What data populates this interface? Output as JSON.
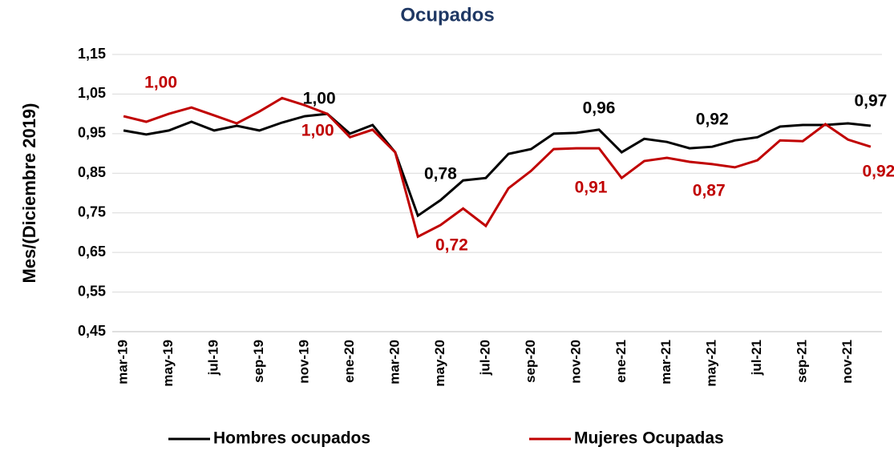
{
  "chart_data": {
    "type": "line",
    "title": "Ocupados",
    "y_label": "Mes/(Diciembre  2019)",
    "categories": [
      "mar-19",
      null,
      "may-19",
      null,
      "jul-19",
      null,
      "sep-19",
      null,
      "nov-19",
      null,
      "ene-20",
      null,
      "mar-20",
      null,
      "may-20",
      null,
      "jul-20",
      null,
      "sep-20",
      null,
      "nov-20",
      null,
      "ene-21",
      null,
      "mar-21",
      null,
      "may-21",
      null,
      "jul-21",
      null,
      "sep-21",
      null,
      "nov-21",
      null
    ],
    "series": [
      {
        "name": "Hombres ocupados",
        "color": "#000000",
        "values": [
          0.958,
          0.948,
          0.958,
          0.98,
          0.958,
          0.97,
          0.958,
          0.978,
          0.994,
          1.0,
          0.95,
          0.972,
          0.903,
          0.743,
          0.782,
          0.832,
          0.838,
          0.899,
          0.911,
          0.95,
          0.952,
          0.96,
          0.903,
          0.937,
          0.929,
          0.913,
          0.917,
          0.933,
          0.941,
          0.968,
          0.972,
          0.972,
          0.976,
          0.97
        ],
        "value_labels": [
          null,
          null,
          null,
          null,
          null,
          null,
          null,
          null,
          null,
          "1,00",
          null,
          null,
          null,
          null,
          "0,78",
          null,
          null,
          null,
          null,
          null,
          null,
          "0,96",
          null,
          null,
          null,
          null,
          "0,92",
          null,
          null,
          null,
          null,
          null,
          null,
          "0,97"
        ]
      },
      {
        "name": "Mujeres Ocupadas",
        "color": "#c00000",
        "values": [
          0.994,
          0.98,
          1.0,
          1.016,
          0.996,
          0.976,
          1.006,
          1.04,
          1.022,
          1.0,
          0.941,
          0.96,
          0.903,
          0.69,
          0.719,
          0.761,
          0.717,
          0.812,
          0.856,
          0.911,
          0.913,
          0.913,
          0.838,
          0.881,
          0.889,
          0.879,
          0.873,
          0.865,
          0.883,
          0.933,
          0.931,
          0.974,
          0.935,
          0.917
        ],
        "value_labels": [
          null,
          null,
          "1,00",
          null,
          null,
          null,
          null,
          null,
          null,
          "1,00",
          null,
          null,
          null,
          null,
          "0,72",
          null,
          null,
          null,
          null,
          null,
          null,
          "0,91",
          null,
          null,
          null,
          null,
          "0,87",
          null,
          null,
          null,
          null,
          null,
          null,
          "0,92"
        ]
      }
    ],
    "ylim": [
      0.45,
      1.15
    ],
    "yticks": [
      {
        "value": 0.45,
        "label": "0,45"
      },
      {
        "value": 0.55,
        "label": "0,55"
      },
      {
        "value": 0.65,
        "label": "0,65"
      },
      {
        "value": 0.75,
        "label": "0,75"
      },
      {
        "value": 0.85,
        "label": "0,85"
      },
      {
        "value": 0.95,
        "label": "0,95"
      },
      {
        "value": 1.05,
        "label": "1,05"
      },
      {
        "value": 1.15,
        "label": "1,15"
      }
    ],
    "grid": true,
    "legend": "bottom"
  }
}
